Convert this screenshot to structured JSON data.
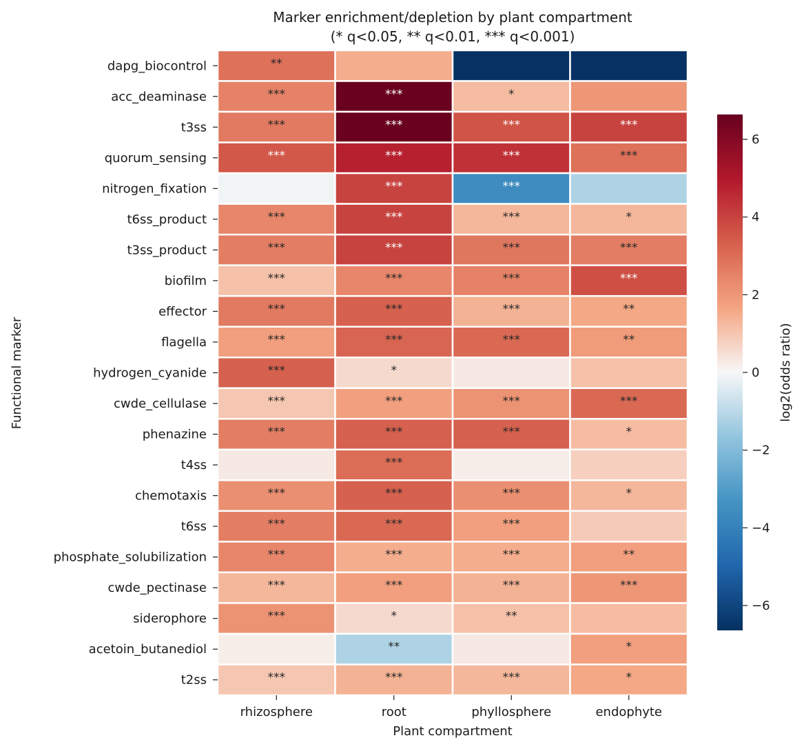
{
  "chart_data": {
    "type": "heatmap",
    "title": "Marker enrichment/depletion by plant compartment",
    "subtitle": "(* q<0.05, ** q<0.01, *** q<0.001)",
    "xlabel": "Plant compartment",
    "ylabel": "Functional marker",
    "colorbar_label": "log2(odds ratio)",
    "colorbar_range": [
      -6.64,
      6.64
    ],
    "colorbar_ticks": [
      -6,
      -4,
      -2,
      0,
      2,
      4,
      6
    ],
    "colormap": "RdBu_r",
    "columns": [
      "rhizosphere",
      "root",
      "phyllosphere",
      "endophyte"
    ],
    "rows": [
      "dapg_biocontrol",
      "acc_deaminase",
      "t3ss",
      "quorum_sensing",
      "nitrogen_fixation",
      "t6ss_product",
      "t3ss_product",
      "biofilm",
      "effector",
      "flagella",
      "hydrogen_cyanide",
      "cwde_cellulase",
      "phenazine",
      "t4ss",
      "chemotaxis",
      "t6ss",
      "phosphate_solubilization",
      "cwde_pectinase",
      "siderophore",
      "acetoin_butanediol",
      "t2ss"
    ],
    "values": [
      [
        2.9,
        1.5,
        -6.6,
        -6.6
      ],
      [
        2.5,
        6.6,
        1.2,
        2.0
      ],
      [
        2.7,
        6.6,
        3.6,
        4.0
      ],
      [
        3.5,
        4.8,
        4.4,
        2.9
      ],
      [
        -0.1,
        4.0,
        -3.6,
        -1.2
      ],
      [
        2.4,
        4.0,
        1.3,
        1.3
      ],
      [
        2.6,
        4.0,
        2.8,
        2.6
      ],
      [
        1.1,
        2.4,
        2.5,
        3.7
      ],
      [
        2.7,
        3.3,
        1.4,
        1.6
      ],
      [
        1.8,
        3.2,
        3.1,
        1.9
      ],
      [
        3.3,
        0.6,
        0.3,
        1.1
      ],
      [
        1.0,
        1.8,
        2.1,
        3.1
      ],
      [
        2.6,
        3.3,
        3.3,
        1.2
      ],
      [
        0.3,
        3.0,
        0.2,
        0.8
      ],
      [
        2.2,
        3.3,
        2.2,
        1.3
      ],
      [
        2.6,
        3.1,
        1.8,
        0.9
      ],
      [
        2.4,
        1.5,
        1.5,
        1.8
      ],
      [
        1.3,
        1.8,
        1.4,
        2.0
      ],
      [
        2.1,
        0.6,
        1.1,
        1.2
      ],
      [
        0.2,
        -1.2,
        0.3,
        1.8
      ],
      [
        1.0,
        1.4,
        1.3,
        1.6
      ]
    ],
    "significance": [
      [
        "**",
        "",
        "",
        ""
      ],
      [
        "***",
        "***",
        "*",
        ""
      ],
      [
        "***",
        "***",
        "***",
        "***"
      ],
      [
        "***",
        "***",
        "***",
        "***"
      ],
      [
        "",
        "***",
        "***",
        ""
      ],
      [
        "***",
        "***",
        "***",
        "*"
      ],
      [
        "***",
        "***",
        "***",
        "***"
      ],
      [
        "***",
        "***",
        "***",
        "***"
      ],
      [
        "***",
        "***",
        "***",
        "**"
      ],
      [
        "***",
        "***",
        "***",
        "**"
      ],
      [
        "***",
        "*",
        "",
        ""
      ],
      [
        "***",
        "***",
        "***",
        "***"
      ],
      [
        "***",
        "***",
        "***",
        "*"
      ],
      [
        "",
        "***",
        "",
        ""
      ],
      [
        "***",
        "***",
        "***",
        "*"
      ],
      [
        "***",
        "***",
        "***",
        ""
      ],
      [
        "***",
        "***",
        "***",
        "**"
      ],
      [
        "***",
        "***",
        "***",
        "***"
      ],
      [
        "***",
        "*",
        "**",
        ""
      ],
      [
        "",
        "**",
        "",
        "*"
      ],
      [
        "***",
        "***",
        "***",
        "*"
      ]
    ],
    "grid": false,
    "colorbar_position": "right"
  }
}
